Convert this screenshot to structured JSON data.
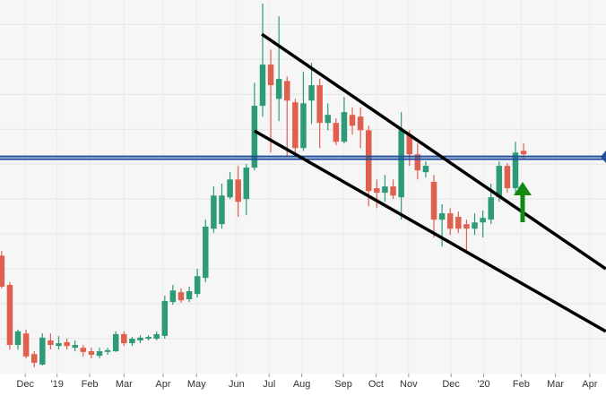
{
  "chart_data": {
    "type": "candlestick",
    "open": [
      33.8,
      25.4,
      8.2,
      11.5,
      5.6,
      2.6,
      9.5,
      7.9,
      9.0,
      7.4,
      7.4,
      6.4,
      5.1,
      6.2,
      6.4,
      11.3,
      8.7,
      9.5,
      10,
      10,
      10.8,
      20.5,
      23.3,
      21.3,
      22.8,
      27.4,
      41.5,
      42.8,
      50.5,
      55.6,
      50,
      59,
      76.7,
      88.5,
      78.7,
      83.8,
      77.7,
      64.6,
      78.2,
      82.6,
      71.8,
      71.8,
      66.4,
      74.1,
      73.6,
      69.7,
      53.1,
      51.8,
      53.6,
      50.5,
      68.5,
      62.8,
      57.7,
      54.9,
      44.1,
      45.9,
      44.9,
      42.8,
      41.5,
      43.3,
      44.1,
      50.5,
      59.5,
      53.1,
      63.8
    ],
    "high": [
      35.1,
      26.2,
      12.6,
      12.6,
      6.4,
      11.5,
      11.5,
      10.8,
      10,
      9.5,
      8.2,
      7.4,
      7.4,
      7.4,
      12.1,
      12.1,
      10.5,
      11,
      11,
      12.1,
      22.3,
      25.4,
      24.4,
      24.9,
      30,
      44.1,
      53.6,
      54.4,
      57.7,
      59.5,
      60,
      83.3,
      106,
      92.8,
      102.3,
      85.1,
      78.7,
      86.4,
      89,
      84.4,
      77.4,
      73.1,
      79.2,
      76.2,
      76.2,
      71,
      55.6,
      56.9,
      55.6,
      74.9,
      69.7,
      65.9,
      60.8,
      56.9,
      48.5,
      47.4,
      46.4,
      44.1,
      45.9,
      46.7,
      54.4,
      60.8,
      60.3,
      66.4,
      65.9
    ],
    "low": [
      24.4,
      6.9,
      6.9,
      4.4,
      1.8,
      2.3,
      6.9,
      6.9,
      6.9,
      6.4,
      4.9,
      4.4,
      4.4,
      5.4,
      6.2,
      7.9,
      7.9,
      8.7,
      9.5,
      9.5,
      10,
      19.7,
      20.3,
      20.5,
      21.8,
      26.2,
      40.3,
      41.5,
      50,
      44.9,
      45.4,
      58.2,
      73.6,
      63.3,
      72.3,
      62.1,
      63.3,
      63.8,
      71.5,
      64.6,
      69.7,
      65.4,
      65.9,
      68.5,
      64.6,
      47.9,
      47.4,
      49.2,
      50,
      44.1,
      59.5,
      55.6,
      56.2,
      39,
      36.4,
      39.7,
      40.3,
      35.1,
      39.7,
      39,
      42.8,
      49.2,
      51.8,
      51.8,
      61.3
    ],
    "close": [
      24.9,
      8.2,
      12.1,
      4.9,
      3.1,
      10.3,
      8.2,
      8.7,
      7.9,
      8.2,
      6.2,
      5.4,
      6.4,
      6.7,
      11.3,
      8.7,
      10,
      10.3,
      10.5,
      11.3,
      20.8,
      23.8,
      21,
      23.6,
      27.9,
      42.1,
      51,
      51,
      55.6,
      49.2,
      59,
      76.7,
      88.5,
      82.6,
      84.4,
      78.2,
      64.6,
      77.4,
      82.6,
      71.8,
      74.1,
      66.4,
      74.9,
      71,
      69.7,
      52.3,
      51.8,
      53.6,
      51,
      69.7,
      62.8,
      58.2,
      59.5,
      44.1,
      45.9,
      41.5,
      41.5,
      41.5,
      43.3,
      44.6,
      50.5,
      59.5,
      53.1,
      63.3,
      62.8
    ],
    "up_color": "#2e9a78",
    "down_color": "#e0604f",
    "xlim": [
      -0.2,
      74.1
    ],
    "xticks": [
      {
        "value": 2.9,
        "label": "Dec"
      },
      {
        "value": 6.8,
        "label": "'19"
      },
      {
        "value": 10.8,
        "label": "Feb"
      },
      {
        "value": 15.0,
        "label": "Mar"
      },
      {
        "value": 19.8,
        "label": "Apr"
      },
      {
        "value": 23.9,
        "label": "May"
      },
      {
        "value": 28.8,
        "label": "Jun"
      },
      {
        "value": 32.8,
        "label": "Jul"
      },
      {
        "value": 36.8,
        "label": "Aug"
      },
      {
        "value": 41.9,
        "label": "Sep"
      },
      {
        "value": 45.9,
        "label": "Oct"
      },
      {
        "value": 49.9,
        "label": "Nov"
      },
      {
        "value": 55.1,
        "label": "Dec"
      },
      {
        "value": 59.1,
        "label": "'20"
      },
      {
        "value": 63.7,
        "label": "Feb"
      },
      {
        "value": 67.9,
        "label": "Mar"
      },
      {
        "value": 72.1,
        "label": "Apr"
      }
    ],
    "ylim": [
      0,
      107
    ],
    "yticks": [
      10,
      20,
      30,
      40,
      50,
      60,
      70,
      80,
      90,
      100
    ],
    "grid": true,
    "reference_lines": [
      {
        "value": 61.8,
        "color": "#1f4e9c"
      }
    ],
    "trendlines": [
      {
        "x": [
          31.9,
          74.07
        ],
        "y": [
          97.2,
          30
        ],
        "color": "#000000"
      },
      {
        "x": [
          31.0,
          74.07
        ],
        "y": [
          69.5,
          12.1
        ],
        "color": "#000000"
      }
    ]
  }
}
